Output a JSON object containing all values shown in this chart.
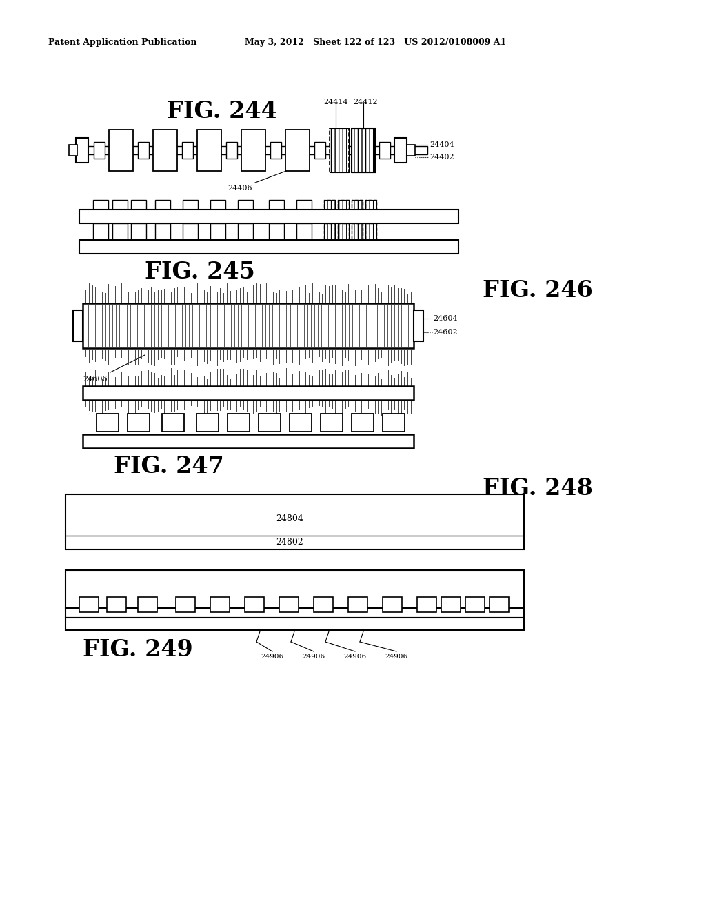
{
  "header_left": "Patent Application Publication",
  "header_right": "May 3, 2012   Sheet 122 of 123   US 2012/0108009 A1",
  "bg_color": "#ffffff",
  "fig244_title": "FIG. 244",
  "fig245_title": "FIG. 245",
  "fig246_title": "FIG. 246",
  "fig247_title": "FIG. 247",
  "fig248_title": "FIG. 248",
  "fig249_title": "FIG. 249"
}
